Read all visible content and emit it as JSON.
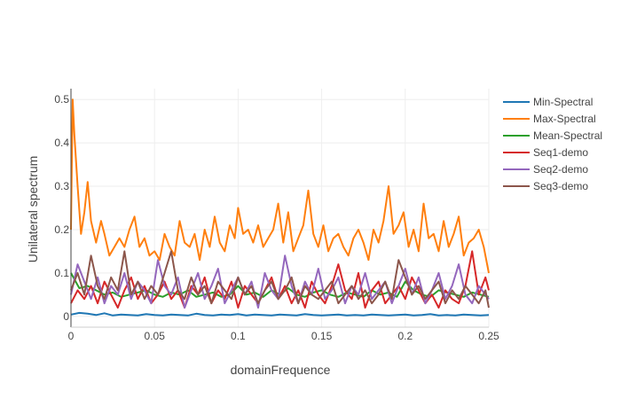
{
  "chart_data": {
    "type": "line",
    "xlabel": "domainFrequence",
    "ylabel": "Unilateral spectrum",
    "xlim": [
      0,
      0.25
    ],
    "ylim": [
      -0.025,
      0.525
    ],
    "xticks": [
      0,
      0.05,
      0.1,
      0.15,
      0.2,
      0.25
    ],
    "xtick_labels": [
      "0",
      "0.05",
      "0.1",
      "0.15",
      "0.2",
      "0.25"
    ],
    "yticks": [
      0,
      0.1,
      0.2,
      0.3,
      0.4,
      0.5
    ],
    "ytick_labels": [
      "0",
      "0.1",
      "0.2",
      "0.3",
      "0.4",
      "0.5"
    ],
    "grid": true,
    "legend_position": "right",
    "series": [
      {
        "name": "Min-Spectral",
        "color": "#1f77b4",
        "x": [
          0,
          0.005,
          0.01,
          0.015,
          0.02,
          0.025,
          0.03,
          0.035,
          0.04,
          0.045,
          0.05,
          0.055,
          0.06,
          0.065,
          0.07,
          0.075,
          0.08,
          0.085,
          0.09,
          0.095,
          0.1,
          0.105,
          0.11,
          0.115,
          0.12,
          0.125,
          0.13,
          0.135,
          0.14,
          0.145,
          0.15,
          0.155,
          0.16,
          0.165,
          0.17,
          0.175,
          0.18,
          0.185,
          0.19,
          0.195,
          0.2,
          0.205,
          0.21,
          0.215,
          0.22,
          0.225,
          0.23,
          0.235,
          0.24,
          0.245,
          0.25
        ],
        "values": [
          0.004,
          0.008,
          0.006,
          0.003,
          0.007,
          0.002,
          0.004,
          0.003,
          0.002,
          0.005,
          0.003,
          0.002,
          0.004,
          0.003,
          0.002,
          0.006,
          0.003,
          0.002,
          0.004,
          0.003,
          0.005,
          0.002,
          0.004,
          0.003,
          0.002,
          0.004,
          0.003,
          0.002,
          0.005,
          0.003,
          0.002,
          0.003,
          0.004,
          0.002,
          0.003,
          0.002,
          0.004,
          0.003,
          0.002,
          0.003,
          0.004,
          0.002,
          0.003,
          0.005,
          0.002,
          0.003,
          0.002,
          0.004,
          0.003,
          0.002,
          0.003
        ]
      },
      {
        "name": "Max-Spectral",
        "color": "#ff7f0e",
        "x": [
          0,
          0.001,
          0.002,
          0.004,
          0.006,
          0.008,
          0.01,
          0.012,
          0.015,
          0.018,
          0.02,
          0.023,
          0.026,
          0.029,
          0.032,
          0.035,
          0.038,
          0.041,
          0.044,
          0.047,
          0.05,
          0.053,
          0.056,
          0.059,
          0.062,
          0.065,
          0.068,
          0.071,
          0.074,
          0.077,
          0.08,
          0.083,
          0.086,
          0.089,
          0.092,
          0.095,
          0.098,
          0.1,
          0.103,
          0.106,
          0.109,
          0.112,
          0.115,
          0.118,
          0.121,
          0.124,
          0.127,
          0.13,
          0.133,
          0.136,
          0.139,
          0.142,
          0.145,
          0.148,
          0.151,
          0.154,
          0.157,
          0.16,
          0.163,
          0.166,
          0.169,
          0.172,
          0.175,
          0.178,
          0.181,
          0.184,
          0.187,
          0.19,
          0.193,
          0.196,
          0.199,
          0.202,
          0.205,
          0.208,
          0.211,
          0.214,
          0.217,
          0.22,
          0.223,
          0.226,
          0.229,
          0.232,
          0.235,
          0.238,
          0.241,
          0.244,
          0.247,
          0.25
        ],
        "values": [
          0.2,
          0.5,
          0.42,
          0.3,
          0.19,
          0.24,
          0.31,
          0.22,
          0.17,
          0.22,
          0.19,
          0.14,
          0.16,
          0.18,
          0.16,
          0.2,
          0.23,
          0.16,
          0.18,
          0.14,
          0.15,
          0.13,
          0.19,
          0.16,
          0.14,
          0.22,
          0.17,
          0.16,
          0.19,
          0.13,
          0.2,
          0.16,
          0.23,
          0.17,
          0.15,
          0.21,
          0.18,
          0.25,
          0.19,
          0.2,
          0.17,
          0.21,
          0.16,
          0.18,
          0.2,
          0.26,
          0.17,
          0.24,
          0.15,
          0.18,
          0.21,
          0.29,
          0.19,
          0.16,
          0.21,
          0.15,
          0.18,
          0.19,
          0.16,
          0.14,
          0.18,
          0.2,
          0.17,
          0.13,
          0.2,
          0.17,
          0.22,
          0.3,
          0.19,
          0.21,
          0.24,
          0.16,
          0.2,
          0.15,
          0.26,
          0.18,
          0.19,
          0.15,
          0.22,
          0.16,
          0.19,
          0.23,
          0.14,
          0.17,
          0.18,
          0.2,
          0.16,
          0.1
        ]
      },
      {
        "name": "Mean-Spectral",
        "color": "#2ca02c",
        "x": [
          0,
          0.005,
          0.01,
          0.015,
          0.02,
          0.025,
          0.03,
          0.035,
          0.04,
          0.045,
          0.05,
          0.055,
          0.06,
          0.065,
          0.07,
          0.075,
          0.08,
          0.085,
          0.09,
          0.095,
          0.1,
          0.105,
          0.11,
          0.115,
          0.12,
          0.125,
          0.13,
          0.135,
          0.14,
          0.145,
          0.15,
          0.155,
          0.16,
          0.165,
          0.17,
          0.175,
          0.18,
          0.185,
          0.19,
          0.195,
          0.2,
          0.205,
          0.21,
          0.215,
          0.22,
          0.225,
          0.23,
          0.235,
          0.24,
          0.245,
          0.25
        ],
        "values": [
          0.1,
          0.065,
          0.07,
          0.06,
          0.05,
          0.055,
          0.045,
          0.05,
          0.055,
          0.06,
          0.05,
          0.045,
          0.055,
          0.05,
          0.06,
          0.045,
          0.05,
          0.055,
          0.045,
          0.05,
          0.07,
          0.05,
          0.055,
          0.045,
          0.06,
          0.05,
          0.065,
          0.05,
          0.045,
          0.055,
          0.06,
          0.05,
          0.045,
          0.055,
          0.05,
          0.045,
          0.06,
          0.05,
          0.055,
          0.045,
          0.08,
          0.06,
          0.05,
          0.045,
          0.06,
          0.055,
          0.05,
          0.045,
          0.055,
          0.05,
          0.045
        ]
      },
      {
        "name": "Seq1-demo",
        "color": "#d62728",
        "x": [
          0,
          0.004,
          0.008,
          0.012,
          0.016,
          0.02,
          0.024,
          0.028,
          0.032,
          0.036,
          0.04,
          0.044,
          0.048,
          0.052,
          0.056,
          0.06,
          0.064,
          0.068,
          0.072,
          0.076,
          0.08,
          0.084,
          0.088,
          0.092,
          0.096,
          0.1,
          0.104,
          0.108,
          0.112,
          0.116,
          0.12,
          0.124,
          0.128,
          0.132,
          0.136,
          0.14,
          0.144,
          0.148,
          0.152,
          0.156,
          0.16,
          0.164,
          0.168,
          0.172,
          0.176,
          0.18,
          0.184,
          0.188,
          0.192,
          0.196,
          0.2,
          0.204,
          0.208,
          0.212,
          0.216,
          0.22,
          0.224,
          0.228,
          0.232,
          0.236,
          0.24,
          0.244,
          0.248,
          0.25
        ],
        "values": [
          0.03,
          0.06,
          0.04,
          0.07,
          0.03,
          0.08,
          0.05,
          0.02,
          0.06,
          0.09,
          0.04,
          0.07,
          0.03,
          0.05,
          0.08,
          0.04,
          0.06,
          0.02,
          0.07,
          0.05,
          0.09,
          0.03,
          0.06,
          0.04,
          0.08,
          0.02,
          0.07,
          0.05,
          0.03,
          0.06,
          0.09,
          0.04,
          0.07,
          0.03,
          0.06,
          0.02,
          0.08,
          0.05,
          0.03,
          0.07,
          0.12,
          0.06,
          0.04,
          0.1,
          0.02,
          0.06,
          0.08,
          0.03,
          0.05,
          0.07,
          0.04,
          0.09,
          0.06,
          0.03,
          0.05,
          0.02,
          0.06,
          0.04,
          0.03,
          0.07,
          0.15,
          0.05,
          0.09,
          0.06
        ]
      },
      {
        "name": "Seq2-demo",
        "color": "#9467bd",
        "x": [
          0,
          0.004,
          0.008,
          0.012,
          0.016,
          0.02,
          0.024,
          0.028,
          0.032,
          0.036,
          0.04,
          0.044,
          0.048,
          0.052,
          0.056,
          0.06,
          0.064,
          0.068,
          0.072,
          0.076,
          0.08,
          0.084,
          0.088,
          0.092,
          0.096,
          0.1,
          0.104,
          0.108,
          0.112,
          0.116,
          0.12,
          0.124,
          0.128,
          0.132,
          0.136,
          0.14,
          0.144,
          0.148,
          0.152,
          0.156,
          0.16,
          0.164,
          0.168,
          0.172,
          0.176,
          0.18,
          0.184,
          0.188,
          0.192,
          0.196,
          0.2,
          0.204,
          0.208,
          0.212,
          0.216,
          0.22,
          0.224,
          0.228,
          0.232,
          0.236,
          0.24,
          0.244,
          0.248,
          0.25
        ],
        "values": [
          0.05,
          0.12,
          0.08,
          0.04,
          0.09,
          0.03,
          0.07,
          0.05,
          0.1,
          0.04,
          0.08,
          0.06,
          0.03,
          0.13,
          0.07,
          0.05,
          0.09,
          0.02,
          0.06,
          0.1,
          0.04,
          0.07,
          0.11,
          0.03,
          0.06,
          0.09,
          0.05,
          0.08,
          0.02,
          0.1,
          0.06,
          0.04,
          0.14,
          0.07,
          0.03,
          0.08,
          0.05,
          0.11,
          0.04,
          0.06,
          0.09,
          0.03,
          0.07,
          0.05,
          0.1,
          0.04,
          0.06,
          0.08,
          0.03,
          0.07,
          0.11,
          0.05,
          0.09,
          0.03,
          0.06,
          0.1,
          0.04,
          0.07,
          0.12,
          0.05,
          0.03,
          0.07,
          0.05,
          0.04
        ]
      },
      {
        "name": "Seq3-demo",
        "color": "#8c564b",
        "x": [
          0,
          0.004,
          0.008,
          0.012,
          0.016,
          0.02,
          0.024,
          0.028,
          0.032,
          0.036,
          0.04,
          0.044,
          0.048,
          0.052,
          0.056,
          0.06,
          0.064,
          0.068,
          0.072,
          0.076,
          0.08,
          0.084,
          0.088,
          0.092,
          0.096,
          0.1,
          0.104,
          0.108,
          0.112,
          0.116,
          0.12,
          0.124,
          0.128,
          0.132,
          0.136,
          0.14,
          0.144,
          0.148,
          0.152,
          0.156,
          0.16,
          0.164,
          0.168,
          0.172,
          0.176,
          0.18,
          0.184,
          0.188,
          0.192,
          0.196,
          0.2,
          0.204,
          0.208,
          0.212,
          0.216,
          0.22,
          0.224,
          0.228,
          0.232,
          0.236,
          0.24,
          0.244,
          0.248,
          0.25
        ],
        "values": [
          0.06,
          0.1,
          0.05,
          0.14,
          0.07,
          0.04,
          0.09,
          0.06,
          0.15,
          0.05,
          0.08,
          0.04,
          0.07,
          0.05,
          0.1,
          0.15,
          0.06,
          0.04,
          0.09,
          0.05,
          0.07,
          0.03,
          0.08,
          0.06,
          0.04,
          0.09,
          0.05,
          0.07,
          0.03,
          0.06,
          0.08,
          0.04,
          0.06,
          0.09,
          0.03,
          0.07,
          0.05,
          0.04,
          0.06,
          0.08,
          0.03,
          0.05,
          0.07,
          0.04,
          0.06,
          0.03,
          0.05,
          0.08,
          0.04,
          0.13,
          0.09,
          0.05,
          0.07,
          0.04,
          0.06,
          0.08,
          0.03,
          0.06,
          0.04,
          0.07,
          0.05,
          0.03,
          0.06,
          0.02
        ]
      }
    ]
  }
}
